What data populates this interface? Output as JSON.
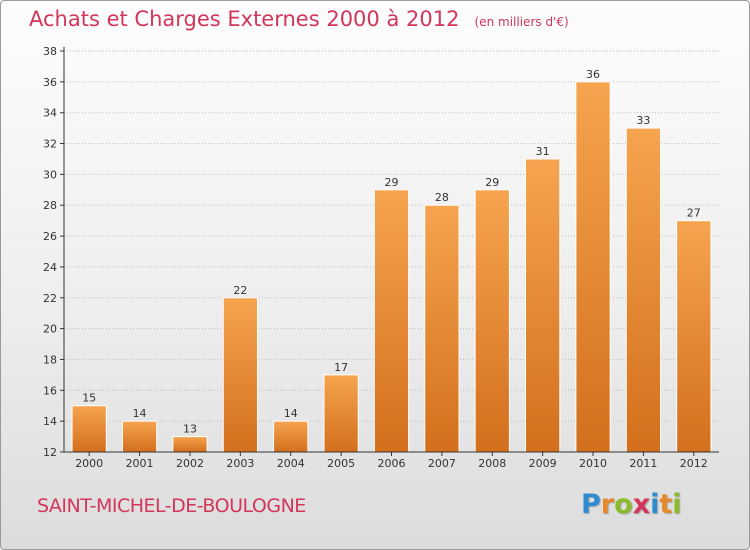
{
  "header": {
    "title": "Achats et Charges Externes 2000 à 2012",
    "unit": "(en milliers d'€)"
  },
  "footer": {
    "commune": "SAINT-MICHEL-DE-BOULOGNE",
    "logo_letters": [
      "P",
      "r",
      "o",
      "x",
      "i",
      "t",
      "i"
    ],
    "logo_colors": [
      "#2e8bd0",
      "#e6892b",
      "#8bbb2b",
      "#d2365a",
      "#2e8bd0",
      "#e6892b",
      "#8bbb2b"
    ]
  },
  "colors": {
    "bar_top": "#f6a44f",
    "bar_bottom": "#d36f1c",
    "axis": "#333333",
    "grid": "#bbbbbb"
  },
  "chart_data": {
    "type": "bar",
    "title": "Achats et Charges Externes 2000 à 2012",
    "subtitle": "(en milliers d'€)",
    "xlabel": "",
    "ylabel": "",
    "categories": [
      "2000",
      "2001",
      "2002",
      "2003",
      "2004",
      "2005",
      "2006",
      "2007",
      "2008",
      "2009",
      "2010",
      "2011",
      "2012"
    ],
    "values": [
      15,
      14,
      13,
      22,
      14,
      17,
      29,
      28,
      29,
      31,
      36,
      33,
      27
    ],
    "ylim": [
      12,
      38
    ],
    "yticks": [
      12,
      14,
      16,
      18,
      20,
      22,
      24,
      26,
      28,
      30,
      32,
      34,
      36,
      38
    ],
    "grid": true,
    "legend": "none"
  }
}
